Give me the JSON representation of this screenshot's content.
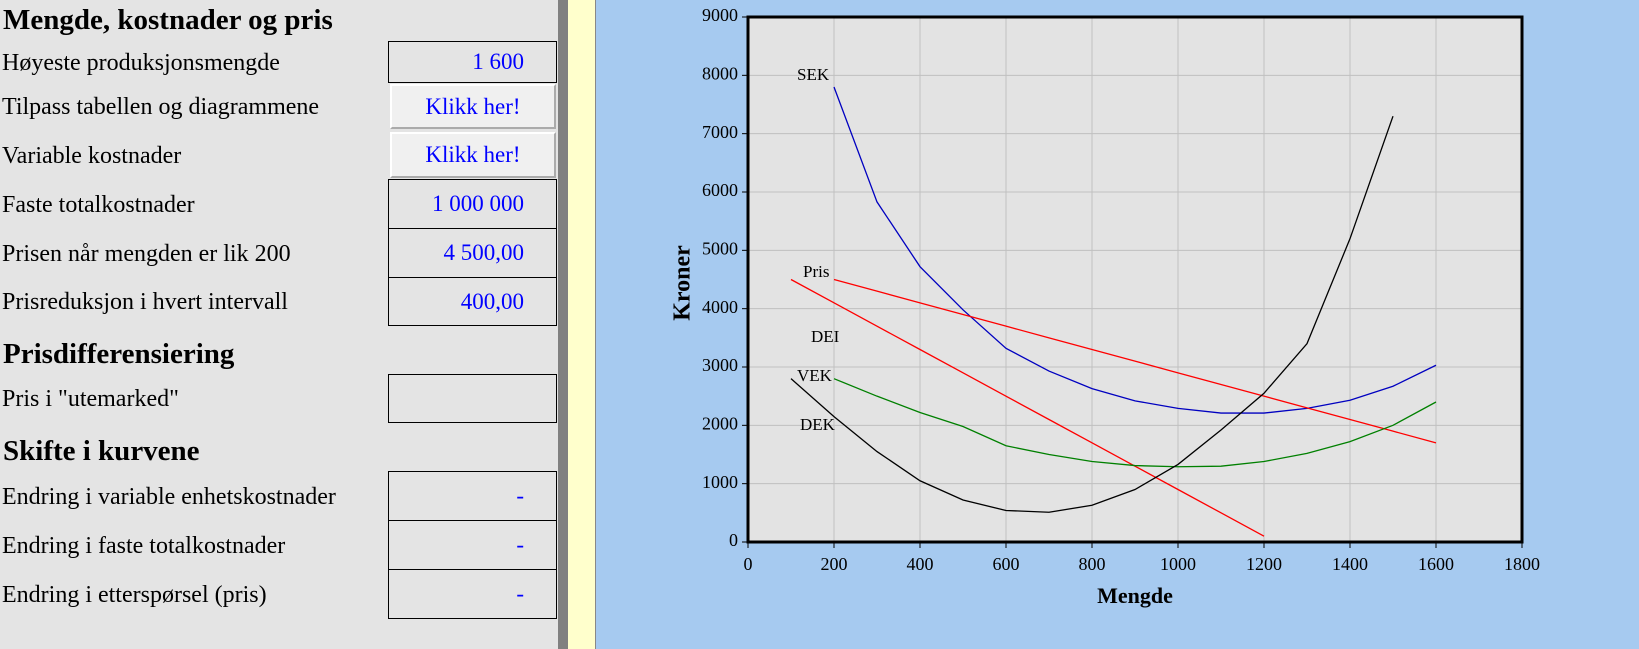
{
  "panel": {
    "sections": [
      {
        "heading": "Mengde, kostnader og pris",
        "rows": [
          {
            "label": "Høyeste produksjonsmengde",
            "value": "1 600"
          },
          {
            "label": "Tilpass tabellen og diagrammene",
            "button": "Klikk her!"
          },
          {
            "label": "Variable kostnader",
            "button": "Klikk her!"
          },
          {
            "label": "Faste totalkostnader",
            "value": "1 000 000"
          },
          {
            "label": "Prisen når mengden er lik 200",
            "value": "4 500,00"
          },
          {
            "label": "Prisreduksjon i hvert intervall",
            "value": "400,00"
          }
        ]
      },
      {
        "heading": "Prisdifferensiering",
        "rows": [
          {
            "label": "Pris i \"utemarked\""
          }
        ]
      },
      {
        "heading": "Skifte i kurvene",
        "rows": [
          {
            "label": "Endring i variable enhetskostnader",
            "value": "-"
          },
          {
            "label": "Endring i faste totalkostnader",
            "value": "-"
          },
          {
            "label": "Endring i etterspørsel (pris)",
            "value": "-"
          }
        ]
      }
    ]
  },
  "chart_data": {
    "type": "line",
    "x_label": "Mengde",
    "y_label": "Kroner",
    "x": [
      100,
      200,
      300,
      400,
      500,
      600,
      700,
      800,
      900,
      1000,
      1100,
      1200,
      1300,
      1400,
      1500,
      1600
    ],
    "series": [
      {
        "name": "SEK",
        "color": "#0000c0",
        "values": [
          null,
          7800,
          5830,
          4720,
          3980,
          3320,
          2930,
          2630,
          2420,
          2290,
          2210,
          2210,
          2290,
          2430,
          2670,
          3030
        ]
      },
      {
        "name": "Pris",
        "color": "#ff0000",
        "values": [
          null,
          4500,
          4300,
          4100,
          3900,
          3700,
          3500,
          3300,
          3100,
          2900,
          2700,
          2500,
          2300,
          2100,
          1900,
          1700
        ]
      },
      {
        "name": "DEI",
        "color": "#ff0000",
        "values": [
          4500,
          4100,
          3700,
          3300,
          2900,
          2500,
          2100,
          1700,
          1300,
          900,
          500,
          100,
          null,
          null,
          null,
          null
        ]
      },
      {
        "name": "VEK",
        "color": "#008000",
        "values": [
          null,
          2800,
          2500,
          2220,
          1980,
          1650,
          1500,
          1380,
          1310,
          1290,
          1300,
          1380,
          1520,
          1720,
          2000,
          2400
        ]
      },
      {
        "name": "DEK",
        "color": "#000000",
        "values": [
          2800,
          2150,
          1550,
          1050,
          720,
          540,
          510,
          630,
          900,
          1330,
          1920,
          2550,
          3400,
          5200,
          7300,
          null
        ]
      }
    ],
    "xlim": [
      0,
      1800
    ],
    "xticks": [
      0,
      200,
      400,
      600,
      800,
      1000,
      1200,
      1400,
      1600,
      1800
    ],
    "ylim": [
      0,
      9000
    ],
    "yticks": [
      0,
      1000,
      2000,
      3000,
      4000,
      5000,
      6000,
      7000,
      8000,
      9000
    ],
    "grid": true
  }
}
